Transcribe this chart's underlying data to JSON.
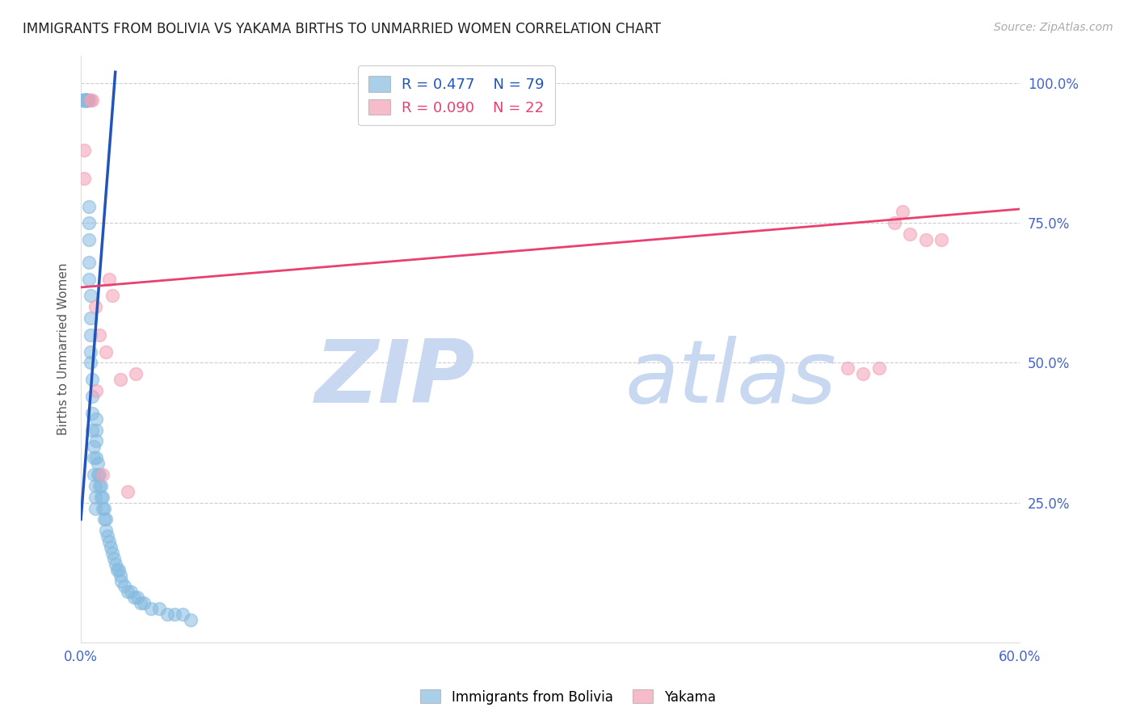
{
  "title": "IMMIGRANTS FROM BOLIVIA VS YAKAMA BIRTHS TO UNMARRIED WOMEN CORRELATION CHART",
  "source": "Source: ZipAtlas.com",
  "ylabel": "Births to Unmarried Women",
  "xlim": [
    0.0,
    0.6
  ],
  "ylim": [
    0.0,
    1.05
  ],
  "xtick_positions": [
    0.0,
    0.12,
    0.24,
    0.36,
    0.48,
    0.6
  ],
  "xticklabels": [
    "0.0%",
    "",
    "",
    "",
    "",
    "60.0%"
  ],
  "ytick_labels": [
    "100.0%",
    "75.0%",
    "50.0%",
    "25.0%"
  ],
  "ytick_values": [
    1.0,
    0.75,
    0.5,
    0.25
  ],
  "grid_color": "#cccccc",
  "background_color": "#ffffff",
  "blue_color": "#85BBE0",
  "pink_color": "#F4A0B5",
  "blue_line_color": "#2255BB",
  "pink_line_color": "#E84070",
  "tick_label_color": "#4466CC",
  "legend_R_blue": "0.477",
  "legend_N_blue": "79",
  "legend_R_pink": "0.090",
  "legend_N_pink": "22",
  "watermark_zip": "ZIP",
  "watermark_atlas": "atlas",
  "watermark_color": "#C8D8F0",
  "blue_scatter_x": [
    0.001,
    0.001,
    0.002,
    0.002,
    0.002,
    0.002,
    0.003,
    0.003,
    0.003,
    0.003,
    0.003,
    0.003,
    0.003,
    0.004,
    0.004,
    0.004,
    0.004,
    0.004,
    0.004,
    0.005,
    0.005,
    0.005,
    0.005,
    0.005,
    0.005,
    0.006,
    0.006,
    0.006,
    0.006,
    0.006,
    0.007,
    0.007,
    0.007,
    0.007,
    0.008,
    0.008,
    0.008,
    0.009,
    0.009,
    0.009,
    0.01,
    0.01,
    0.01,
    0.01,
    0.011,
    0.011,
    0.012,
    0.012,
    0.013,
    0.013,
    0.014,
    0.014,
    0.015,
    0.015,
    0.016,
    0.016,
    0.017,
    0.018,
    0.019,
    0.02,
    0.021,
    0.022,
    0.023,
    0.024,
    0.025,
    0.026,
    0.028,
    0.03,
    0.032,
    0.034,
    0.036,
    0.038,
    0.04,
    0.045,
    0.05,
    0.055,
    0.06,
    0.065,
    0.07
  ],
  "blue_scatter_y": [
    0.97,
    0.97,
    0.97,
    0.97,
    0.97,
    0.97,
    0.97,
    0.97,
    0.97,
    0.97,
    0.97,
    0.97,
    0.97,
    0.97,
    0.97,
    0.97,
    0.97,
    0.97,
    0.97,
    0.97,
    0.78,
    0.75,
    0.72,
    0.68,
    0.65,
    0.62,
    0.58,
    0.55,
    0.52,
    0.5,
    0.47,
    0.44,
    0.41,
    0.38,
    0.35,
    0.33,
    0.3,
    0.28,
    0.26,
    0.24,
    0.33,
    0.36,
    0.38,
    0.4,
    0.3,
    0.32,
    0.28,
    0.3,
    0.26,
    0.28,
    0.24,
    0.26,
    0.22,
    0.24,
    0.2,
    0.22,
    0.19,
    0.18,
    0.17,
    0.16,
    0.15,
    0.14,
    0.13,
    0.13,
    0.12,
    0.11,
    0.1,
    0.09,
    0.09,
    0.08,
    0.08,
    0.07,
    0.07,
    0.06,
    0.06,
    0.05,
    0.05,
    0.05,
    0.04
  ],
  "pink_scatter_x": [
    0.002,
    0.002,
    0.006,
    0.007,
    0.009,
    0.01,
    0.012,
    0.014,
    0.016,
    0.018,
    0.02,
    0.025,
    0.03,
    0.035,
    0.49,
    0.5,
    0.51,
    0.52,
    0.525,
    0.53,
    0.54,
    0.55
  ],
  "pink_scatter_y": [
    0.88,
    0.83,
    0.97,
    0.97,
    0.6,
    0.45,
    0.55,
    0.3,
    0.52,
    0.65,
    0.62,
    0.47,
    0.27,
    0.48,
    0.49,
    0.48,
    0.49,
    0.75,
    0.77,
    0.73,
    0.72,
    0.72
  ],
  "blue_trend_x": [
    0.0,
    0.022
  ],
  "blue_trend_y": [
    0.22,
    1.02
  ],
  "pink_trend_x": [
    0.0,
    0.6
  ],
  "pink_trend_y": [
    0.635,
    0.775
  ]
}
